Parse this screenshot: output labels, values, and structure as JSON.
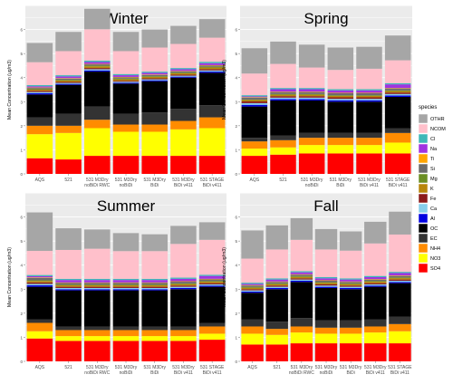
{
  "legend_title": "species",
  "legend_placement": "right",
  "panel_background": "#ebebeb",
  "chart_data": [
    {
      "type": "bar",
      "stacked": true,
      "title": "Winter",
      "ylabel": "Mean Concentration (ug/m3)",
      "ylim": [
        0,
        7
      ],
      "yticks": [
        "0",
        "1",
        "2",
        "3",
        "4",
        "5",
        "6"
      ],
      "categories": [
        "AQS",
        "521",
        "531 M3Dry noBiDi RWC",
        "531 M3Dry noBiDi",
        "531 M3Dry BiDi",
        "531 M3Dry BiDi v411",
        "531 STAGE BiDi v411"
      ],
      "series": [
        {
          "name": "SO4",
          "values": [
            0.65,
            0.6,
            0.75,
            0.75,
            0.75,
            0.75,
            0.75
          ]
        },
        {
          "name": "NO3",
          "values": [
            1.0,
            1.1,
            1.15,
            1.0,
            1.0,
            1.1,
            1.15
          ]
        },
        {
          "name": "NH4",
          "values": [
            0.35,
            0.3,
            0.35,
            0.3,
            0.3,
            0.35,
            0.45
          ]
        },
        {
          "name": "EC",
          "values": [
            0.35,
            0.5,
            0.55,
            0.45,
            0.5,
            0.5,
            0.5
          ]
        },
        {
          "name": "OC",
          "values": [
            0.95,
            1.2,
            1.45,
            1.25,
            1.3,
            1.3,
            1.35
          ]
        },
        {
          "name": "Al",
          "values": [
            0.05,
            0.04,
            0.05,
            0.04,
            0.04,
            0.04,
            0.05
          ]
        },
        {
          "name": "Ca",
          "values": [
            0.05,
            0.04,
            0.05,
            0.04,
            0.04,
            0.04,
            0.05
          ]
        },
        {
          "name": "Fe",
          "values": [
            0.05,
            0.04,
            0.05,
            0.04,
            0.04,
            0.04,
            0.05
          ]
        },
        {
          "name": "K",
          "values": [
            0.05,
            0.06,
            0.07,
            0.06,
            0.06,
            0.06,
            0.07
          ]
        },
        {
          "name": "Mg",
          "values": [
            0.02,
            0.03,
            0.03,
            0.03,
            0.03,
            0.03,
            0.03
          ]
        },
        {
          "name": "Si",
          "values": [
            0.05,
            0.05,
            0.05,
            0.05,
            0.05,
            0.05,
            0.05
          ]
        },
        {
          "name": "Ti",
          "values": [
            0.02,
            0.02,
            0.02,
            0.02,
            0.02,
            0.02,
            0.02
          ]
        },
        {
          "name": "Na",
          "values": [
            0.05,
            0.07,
            0.08,
            0.07,
            0.07,
            0.07,
            0.08
          ]
        },
        {
          "name": "Cl",
          "values": [
            0.05,
            0.05,
            0.06,
            0.05,
            0.05,
            0.05,
            0.06
          ]
        },
        {
          "name": "NCOM",
          "values": [
            0.95,
            1.0,
            1.3,
            0.95,
            1.0,
            1.0,
            1.0
          ]
        },
        {
          "name": "OTHR",
          "values": [
            0.8,
            0.8,
            0.85,
            0.8,
            0.75,
            0.75,
            0.77
          ]
        }
      ]
    },
    {
      "type": "bar",
      "stacked": true,
      "title": "Spring",
      "ylabel": "Mean Concentration (ug/m3)",
      "ylim": [
        0,
        7
      ],
      "yticks": [
        "0",
        "1",
        "2",
        "3",
        "4",
        "5",
        "6"
      ],
      "categories": [
        "AQS",
        "521",
        "531 M3Dry noBiDi",
        "531 M3Dry BiDi",
        "531 M3Dry BiDi v411",
        "531 STAGE BiDi v411"
      ],
      "series": [
        {
          "name": "SO4",
          "values": [
            0.75,
            0.8,
            0.85,
            0.85,
            0.85,
            0.85
          ]
        },
        {
          "name": "NO3",
          "values": [
            0.3,
            0.3,
            0.35,
            0.35,
            0.35,
            0.45
          ]
        },
        {
          "name": "NH4",
          "values": [
            0.3,
            0.3,
            0.3,
            0.3,
            0.3,
            0.4
          ]
        },
        {
          "name": "EC",
          "values": [
            0.15,
            0.2,
            0.2,
            0.2,
            0.2,
            0.2
          ]
        },
        {
          "name": "OC",
          "values": [
            1.3,
            1.45,
            1.35,
            1.3,
            1.3,
            1.3
          ]
        },
        {
          "name": "Al",
          "values": [
            0.07,
            0.06,
            0.06,
            0.06,
            0.06,
            0.06
          ]
        },
        {
          "name": "Ca",
          "values": [
            0.07,
            0.06,
            0.06,
            0.06,
            0.06,
            0.06
          ]
        },
        {
          "name": "Fe",
          "values": [
            0.07,
            0.06,
            0.06,
            0.06,
            0.06,
            0.06
          ]
        },
        {
          "name": "K",
          "values": [
            0.06,
            0.06,
            0.06,
            0.06,
            0.06,
            0.06
          ]
        },
        {
          "name": "Mg",
          "values": [
            0.02,
            0.03,
            0.03,
            0.03,
            0.03,
            0.03
          ]
        },
        {
          "name": "Si",
          "values": [
            0.08,
            0.08,
            0.08,
            0.08,
            0.08,
            0.08
          ]
        },
        {
          "name": "Ti",
          "values": [
            0.02,
            0.02,
            0.02,
            0.02,
            0.02,
            0.02
          ]
        },
        {
          "name": "Na",
          "values": [
            0.03,
            0.1,
            0.1,
            0.1,
            0.1,
            0.15
          ]
        },
        {
          "name": "Cl",
          "values": [
            0.05,
            0.05,
            0.05,
            0.05,
            0.05,
            0.05
          ]
        },
        {
          "name": "NCOM",
          "values": [
            0.9,
            1.0,
            0.85,
            0.8,
            0.85,
            0.95
          ]
        },
        {
          "name": "OTHR",
          "values": [
            1.05,
            0.93,
            0.95,
            0.93,
            0.91,
            1.03
          ]
        }
      ]
    },
    {
      "type": "bar",
      "stacked": true,
      "title": "Summer",
      "ylabel": "Mean Concentration (ug/m3)",
      "ylim": [
        0,
        7
      ],
      "yticks": [
        "0",
        "1",
        "2",
        "3",
        "4",
        "5",
        "6"
      ],
      "categories": [
        "AQS",
        "521",
        "531 M3Dry noBiDi RWC",
        "531 M3Dry noBiDi",
        "531 M3Dry BiDi",
        "531 M3Dry BiDi v411",
        "531 STAGE BiDi v411"
      ],
      "series": [
        {
          "name": "SO4",
          "values": [
            0.95,
            0.85,
            0.85,
            0.85,
            0.85,
            0.85,
            0.9
          ]
        },
        {
          "name": "NO3",
          "values": [
            0.3,
            0.2,
            0.2,
            0.2,
            0.2,
            0.2,
            0.25
          ]
        },
        {
          "name": "NH4",
          "values": [
            0.35,
            0.25,
            0.25,
            0.25,
            0.25,
            0.25,
            0.3
          ]
        },
        {
          "name": "EC",
          "values": [
            0.15,
            0.15,
            0.15,
            0.15,
            0.15,
            0.15,
            0.15
          ]
        },
        {
          "name": "OC",
          "values": [
            1.35,
            1.5,
            1.5,
            1.5,
            1.5,
            1.55,
            1.5
          ]
        },
        {
          "name": "Al",
          "values": [
            0.06,
            0.05,
            0.05,
            0.05,
            0.05,
            0.05,
            0.05
          ]
        },
        {
          "name": "Ca",
          "values": [
            0.06,
            0.05,
            0.05,
            0.05,
            0.05,
            0.05,
            0.05
          ]
        },
        {
          "name": "Fe",
          "values": [
            0.06,
            0.05,
            0.05,
            0.05,
            0.05,
            0.05,
            0.05
          ]
        },
        {
          "name": "K",
          "values": [
            0.06,
            0.06,
            0.06,
            0.06,
            0.06,
            0.06,
            0.06
          ]
        },
        {
          "name": "Mg",
          "values": [
            0.03,
            0.03,
            0.03,
            0.03,
            0.03,
            0.03,
            0.03
          ]
        },
        {
          "name": "Si",
          "values": [
            0.1,
            0.07,
            0.07,
            0.07,
            0.07,
            0.07,
            0.07
          ]
        },
        {
          "name": "Ti",
          "values": [
            0.02,
            0.02,
            0.02,
            0.02,
            0.02,
            0.02,
            0.02
          ]
        },
        {
          "name": "Na",
          "values": [
            0.05,
            0.1,
            0.1,
            0.1,
            0.1,
            0.1,
            0.12
          ]
        },
        {
          "name": "Cl",
          "values": [
            0.05,
            0.05,
            0.05,
            0.05,
            0.05,
            0.05,
            0.05
          ]
        },
        {
          "name": "NCOM",
          "values": [
            1.0,
            1.2,
            1.25,
            1.15,
            1.15,
            1.4,
            1.45
          ]
        },
        {
          "name": "OTHR",
          "values": [
            1.6,
            0.9,
            0.8,
            0.75,
            0.7,
            0.75,
            0.73
          ]
        }
      ]
    },
    {
      "type": "bar",
      "stacked": true,
      "title": "Fall",
      "ylabel": "Mean Concentration (ug/m3)",
      "ylim": [
        0,
        7
      ],
      "yticks": [
        "0",
        "1",
        "2",
        "3",
        "4",
        "5",
        "6"
      ],
      "categories": [
        "AQS",
        "521",
        "531 M3Dry noBiDi RWC",
        "531 M3Dry noBiDi",
        "531 M3Dry BiDi",
        "531 M3Dry BiDi v411",
        "531 STAGE BiDi v411"
      ],
      "series": [
        {
          "name": "SO4",
          "values": [
            0.7,
            0.7,
            0.75,
            0.75,
            0.75,
            0.75,
            0.75
          ]
        },
        {
          "name": "NO3",
          "values": [
            0.45,
            0.4,
            0.45,
            0.4,
            0.4,
            0.45,
            0.5
          ]
        },
        {
          "name": "NH4",
          "values": [
            0.3,
            0.25,
            0.25,
            0.25,
            0.25,
            0.25,
            0.3
          ]
        },
        {
          "name": "EC",
          "values": [
            0.3,
            0.3,
            0.35,
            0.3,
            0.3,
            0.3,
            0.3
          ]
        },
        {
          "name": "OC",
          "values": [
            1.1,
            1.35,
            1.5,
            1.35,
            1.3,
            1.35,
            1.4
          ]
        },
        {
          "name": "Al",
          "values": [
            0.05,
            0.05,
            0.05,
            0.05,
            0.05,
            0.05,
            0.05
          ]
        },
        {
          "name": "Ca",
          "values": [
            0.05,
            0.05,
            0.05,
            0.05,
            0.05,
            0.05,
            0.05
          ]
        },
        {
          "name": "Fe",
          "values": [
            0.05,
            0.05,
            0.05,
            0.05,
            0.05,
            0.05,
            0.05
          ]
        },
        {
          "name": "K",
          "values": [
            0.06,
            0.06,
            0.06,
            0.06,
            0.06,
            0.06,
            0.06
          ]
        },
        {
          "name": "Mg",
          "values": [
            0.03,
            0.03,
            0.03,
            0.03,
            0.03,
            0.03,
            0.03
          ]
        },
        {
          "name": "Si",
          "values": [
            0.06,
            0.06,
            0.06,
            0.06,
            0.06,
            0.06,
            0.06
          ]
        },
        {
          "name": "Ti",
          "values": [
            0.02,
            0.02,
            0.02,
            0.02,
            0.02,
            0.02,
            0.02
          ]
        },
        {
          "name": "Na",
          "values": [
            0.05,
            0.08,
            0.08,
            0.08,
            0.08,
            0.08,
            0.1
          ]
        },
        {
          "name": "Cl",
          "values": [
            0.05,
            0.05,
            0.05,
            0.05,
            0.05,
            0.05,
            0.05
          ]
        },
        {
          "name": "NCOM",
          "values": [
            1.0,
            1.2,
            1.3,
            1.15,
            1.15,
            1.35,
            1.55
          ]
        },
        {
          "name": "OTHR",
          "values": [
            1.17,
            1.0,
            0.9,
            0.85,
            0.8,
            0.9,
            0.95
          ]
        }
      ]
    }
  ],
  "species": [
    {
      "name": "OTHR",
      "color": "#a6a6a6"
    },
    {
      "name": "NCOM",
      "color": "#ffc0cb"
    },
    {
      "name": "Cl",
      "color": "#3fb8b8"
    },
    {
      "name": "Na",
      "color": "#a033e0"
    },
    {
      "name": "Ti",
      "color": "#ffa500"
    },
    {
      "name": "Si",
      "color": "#6b6b6b"
    },
    {
      "name": "Mg",
      "color": "#6b8e23"
    },
    {
      "name": "K",
      "color": "#b8860b"
    },
    {
      "name": "Fe",
      "color": "#8b1a1a"
    },
    {
      "name": "Ca",
      "color": "#87ceeb"
    },
    {
      "name": "Al",
      "color": "#0000e0"
    },
    {
      "name": "OC",
      "color": "#000000"
    },
    {
      "name": "EC",
      "color": "#333333"
    },
    {
      "name": "NH4",
      "color": "#ff8c00"
    },
    {
      "name": "NO3",
      "color": "#ffff00"
    },
    {
      "name": "SO4",
      "color": "#ff0000"
    }
  ]
}
